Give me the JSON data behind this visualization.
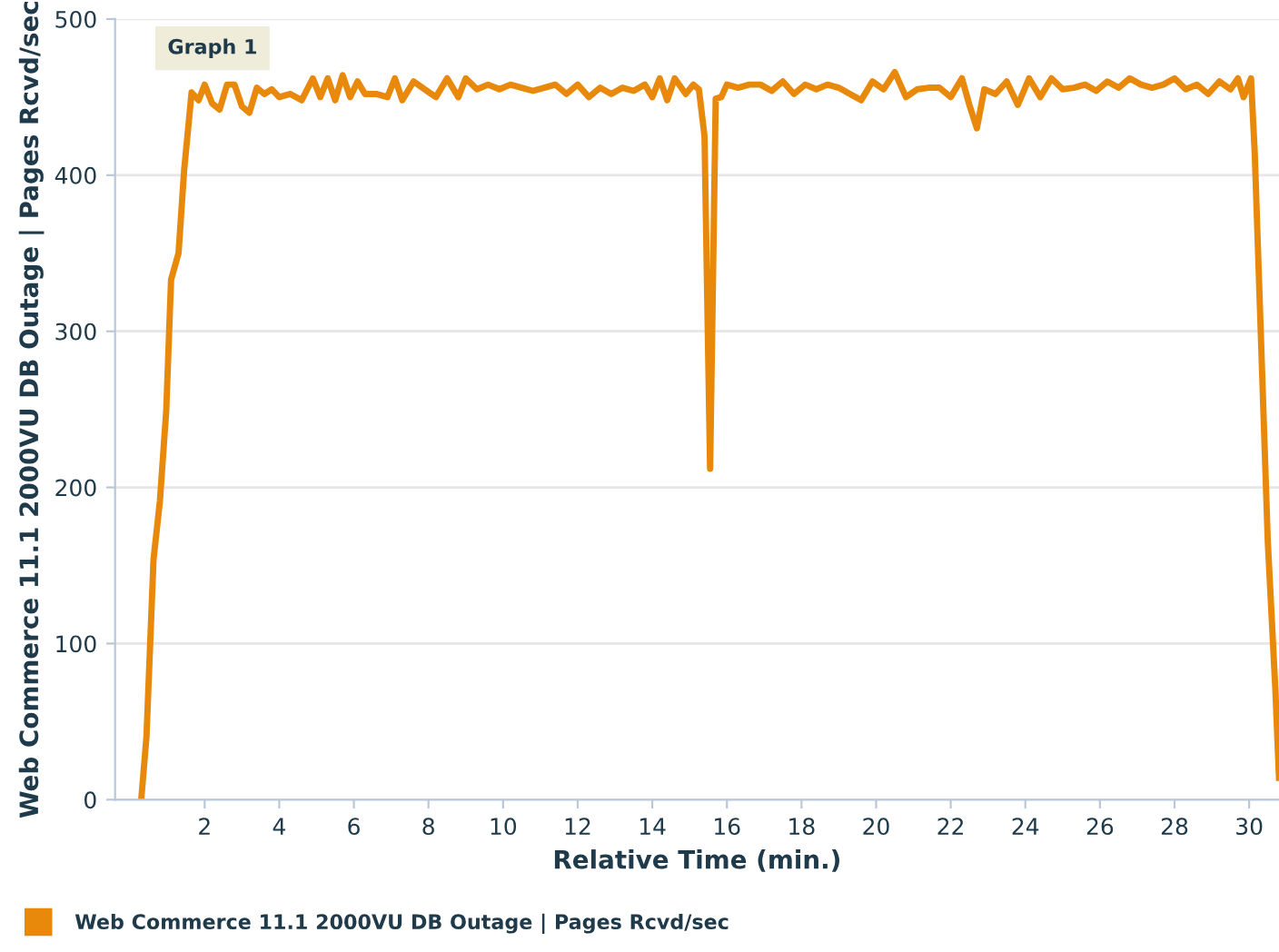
{
  "chart_data": {
    "type": "line",
    "xlabel": "Relative Time (min.)",
    "ylabel": "Web Commerce 11.1 2000VU DB Outage | Pages Rcvd/sec",
    "annotations": [
      "Graph 1"
    ],
    "series": [
      {
        "name": "Web Commerce 11.1 2000VU DB Outage | Pages Rcvd/sec",
        "color": "#e8890c",
        "x": [
          0.3,
          0.44,
          0.63,
          0.8,
          0.97,
          1.1,
          1.3,
          1.45,
          1.65,
          1.84,
          2.0,
          2.2,
          2.4,
          2.6,
          2.8,
          3.0,
          3.2,
          3.4,
          3.6,
          3.8,
          4.0,
          4.3,
          4.6,
          4.9,
          5.1,
          5.3,
          5.5,
          5.7,
          5.9,
          6.1,
          6.3,
          6.6,
          6.9,
          7.1,
          7.3,
          7.6,
          7.9,
          8.2,
          8.5,
          8.8,
          9.0,
          9.3,
          9.6,
          9.9,
          10.2,
          10.5,
          10.8,
          11.1,
          11.4,
          11.7,
          12.0,
          12.3,
          12.6,
          12.9,
          13.2,
          13.5,
          13.8,
          14.0,
          14.2,
          14.4,
          14.6,
          14.9,
          15.1,
          15.25,
          15.4,
          15.55,
          15.7,
          15.85,
          16.0,
          16.3,
          16.6,
          16.9,
          17.2,
          17.5,
          17.8,
          18.1,
          18.4,
          18.7,
          19.0,
          19.3,
          19.6,
          19.9,
          20.2,
          20.5,
          20.8,
          21.1,
          21.4,
          21.7,
          22.0,
          22.3,
          22.5,
          22.7,
          22.9,
          23.2,
          23.5,
          23.8,
          24.1,
          24.4,
          24.7,
          25.0,
          25.3,
          25.6,
          25.9,
          26.2,
          26.5,
          26.8,
          27.1,
          27.4,
          27.7,
          28.0,
          28.3,
          28.6,
          28.9,
          29.2,
          29.5,
          29.7,
          29.85,
          30.05,
          30.15,
          30.5,
          30.7,
          30.8
        ],
        "values": [
          0,
          40,
          154,
          191,
          249,
          333,
          350,
          403,
          453,
          448,
          458,
          446,
          442,
          458,
          458,
          444,
          440,
          456,
          452,
          455,
          450,
          452,
          448,
          462,
          450,
          462,
          448,
          464,
          450,
          460,
          452,
          452,
          450,
          462,
          448,
          460,
          455,
          450,
          462,
          450,
          462,
          455,
          458,
          455,
          458,
          456,
          454,
          456,
          458,
          452,
          458,
          450,
          456,
          452,
          456,
          454,
          458,
          450,
          462,
          448,
          462,
          452,
          458,
          455,
          425,
          212,
          449,
          450,
          458,
          456,
          458,
          458,
          454,
          460,
          452,
          458,
          455,
          458,
          456,
          452,
          448,
          460,
          455,
          466,
          450,
          455,
          456,
          456,
          450,
          462,
          445,
          430,
          455,
          452,
          460,
          445,
          462,
          450,
          462,
          455,
          456,
          458,
          454,
          460,
          456,
          462,
          458,
          456,
          458,
          462,
          455,
          458,
          452,
          460,
          455,
          462,
          450,
          462,
          414,
          165,
          72,
          14
        ]
      }
    ],
    "xlim": [
      -0.4,
      30.8
    ],
    "ylim": [
      0,
      500
    ],
    "xticks": [
      2,
      4,
      6,
      8,
      10,
      12,
      14,
      16,
      18,
      20,
      22,
      24,
      26,
      28,
      30
    ],
    "yticks": [
      0,
      100,
      200,
      300,
      400,
      500
    ],
    "grid": "y",
    "legend": "bottom left",
    "marker": "none",
    "line_style": "solid"
  }
}
